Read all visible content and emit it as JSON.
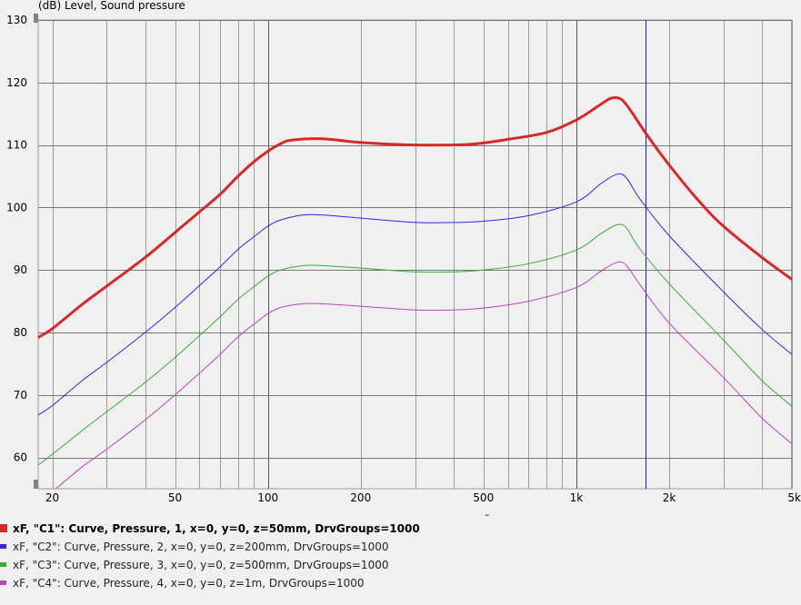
{
  "colors": {
    "plot_bg": "#f0f0f0",
    "grid": "#9a9a9a",
    "cursor": "#1a1aa8",
    "c1": "#d42a2a",
    "c2": "#2a2ad4",
    "c3": "#3aa83a",
    "c4": "#b648b6"
  },
  "chart_data": {
    "type": "line",
    "ylabel": "(dB)  Level, Sound pressure",
    "x_scale": "log",
    "xlim": [
      18,
      5000
    ],
    "ylim": [
      55,
      130
    ],
    "x_tick_labels": [
      {
        "value": 20,
        "label": "20"
      },
      {
        "value": 50,
        "label": "50"
      },
      {
        "value": 100,
        "label": "100"
      },
      {
        "value": 200,
        "label": "200"
      },
      {
        "value": 500,
        "label": "500"
      },
      {
        "value": 1000,
        "label": "1k"
      },
      {
        "value": 2000,
        "label": "2k"
      },
      {
        "value": 5000,
        "label": "5k"
      }
    ],
    "y_ticks": [
      60,
      70,
      80,
      90,
      100,
      110,
      120,
      130
    ],
    "grid": true,
    "cursor_x": 1680,
    "series": [
      {
        "name": "xF, \"C1\": Curve, Pressure, 1, x=0, y=0, z=50mm, DrvGroups=1000",
        "color": "#d42a2a",
        "width": 3,
        "bold": true,
        "points": [
          [
            18,
            79.2
          ],
          [
            20,
            80.6
          ],
          [
            25,
            84.5
          ],
          [
            30,
            87.4
          ],
          [
            40,
            92.0
          ],
          [
            50,
            96.0
          ],
          [
            60,
            99.3
          ],
          [
            70,
            102.1
          ],
          [
            80,
            105.0
          ],
          [
            90,
            107.3
          ],
          [
            100,
            109.0
          ],
          [
            110,
            110.2
          ],
          [
            120,
            110.8
          ],
          [
            150,
            111.0
          ],
          [
            200,
            110.4
          ],
          [
            300,
            110.0
          ],
          [
            450,
            110.1
          ],
          [
            600,
            110.9
          ],
          [
            800,
            112.0
          ],
          [
            1000,
            114.0
          ],
          [
            1200,
            116.5
          ],
          [
            1300,
            117.5
          ],
          [
            1400,
            117.3
          ],
          [
            1500,
            115.5
          ],
          [
            1700,
            111.5
          ],
          [
            2000,
            106.8
          ],
          [
            2500,
            101.0
          ],
          [
            3000,
            97.0
          ],
          [
            4000,
            92.0
          ],
          [
            5000,
            88.5
          ]
        ]
      },
      {
        "name": "xF, \"C2\": Curve, Pressure, 2, x=0, y=0, z=200mm, DrvGroups=1000",
        "color": "#2a2ad4",
        "width": 1,
        "bold": false,
        "points": [
          [
            18,
            66.8
          ],
          [
            20,
            68.3
          ],
          [
            25,
            72.3
          ],
          [
            30,
            75.2
          ],
          [
            40,
            80.0
          ],
          [
            50,
            84.0
          ],
          [
            60,
            87.5
          ],
          [
            70,
            90.5
          ],
          [
            80,
            93.3
          ],
          [
            90,
            95.3
          ],
          [
            100,
            97.0
          ],
          [
            110,
            98.0
          ],
          [
            130,
            98.8
          ],
          [
            150,
            98.8
          ],
          [
            200,
            98.3
          ],
          [
            300,
            97.6
          ],
          [
            400,
            97.6
          ],
          [
            500,
            97.8
          ],
          [
            700,
            98.7
          ],
          [
            1000,
            100.9
          ],
          [
            1200,
            103.8
          ],
          [
            1350,
            105.3
          ],
          [
            1450,
            104.8
          ],
          [
            1600,
            101.5
          ],
          [
            2000,
            95.5
          ],
          [
            3000,
            86.5
          ],
          [
            4000,
            80.5
          ],
          [
            5000,
            76.5
          ]
        ]
      },
      {
        "name": "xF, \"C3\": Curve, Pressure, 3, x=0, y=0, z=500mm, DrvGroups=1000",
        "color": "#3aa83a",
        "width": 1,
        "bold": false,
        "points": [
          [
            18,
            58.8
          ],
          [
            20,
            60.5
          ],
          [
            25,
            64.3
          ],
          [
            30,
            67.3
          ],
          [
            40,
            72.0
          ],
          [
            50,
            76.0
          ],
          [
            60,
            79.5
          ],
          [
            70,
            82.5
          ],
          [
            80,
            85.3
          ],
          [
            90,
            87.3
          ],
          [
            100,
            89.0
          ],
          [
            110,
            90.0
          ],
          [
            130,
            90.7
          ],
          [
            150,
            90.7
          ],
          [
            200,
            90.3
          ],
          [
            300,
            89.7
          ],
          [
            400,
            89.7
          ],
          [
            500,
            90.0
          ],
          [
            700,
            91.0
          ],
          [
            1000,
            93.2
          ],
          [
            1200,
            95.8
          ],
          [
            1350,
            97.2
          ],
          [
            1450,
            96.8
          ],
          [
            1600,
            93.5
          ],
          [
            2000,
            87.8
          ],
          [
            3000,
            78.8
          ],
          [
            4000,
            72.3
          ],
          [
            5000,
            68.2
          ]
        ]
      },
      {
        "name": "xF, \"C4\": Curve, Pressure, 4, x=0, y=0, z=1m, DrvGroups=1000",
        "color": "#b648b6",
        "width": 1,
        "bold": false,
        "points": [
          [
            20,
            54.5
          ],
          [
            25,
            58.5
          ],
          [
            30,
            61.3
          ],
          [
            40,
            66.0
          ],
          [
            50,
            70.0
          ],
          [
            60,
            73.5
          ],
          [
            70,
            76.5
          ],
          [
            80,
            79.3
          ],
          [
            90,
            81.3
          ],
          [
            100,
            83.0
          ],
          [
            110,
            84.0
          ],
          [
            130,
            84.6
          ],
          [
            150,
            84.6
          ],
          [
            200,
            84.2
          ],
          [
            300,
            83.6
          ],
          [
            400,
            83.6
          ],
          [
            500,
            83.9
          ],
          [
            700,
            85.0
          ],
          [
            1000,
            87.2
          ],
          [
            1200,
            89.8
          ],
          [
            1350,
            91.2
          ],
          [
            1450,
            90.8
          ],
          [
            1600,
            87.8
          ],
          [
            2000,
            81.5
          ],
          [
            3000,
            72.8
          ],
          [
            4000,
            66.3
          ],
          [
            5000,
            62.2
          ]
        ]
      }
    ]
  },
  "legend": {
    "c1": "xF, \"C1\": Curve, Pressure, 1, x=0, y=0, z=50mm, DrvGroups=1000",
    "c2": "xF, \"C2\": Curve, Pressure, 2, x=0, y=0, z=200mm, DrvGroups=1000",
    "c3": "xF, \"C3\": Curve, Pressure, 3, x=0, y=0, z=500mm, DrvGroups=1000",
    "c4": "xF, \"C4\": Curve, Pressure, 4, x=0, y=0, z=1m, DrvGroups=1000"
  }
}
